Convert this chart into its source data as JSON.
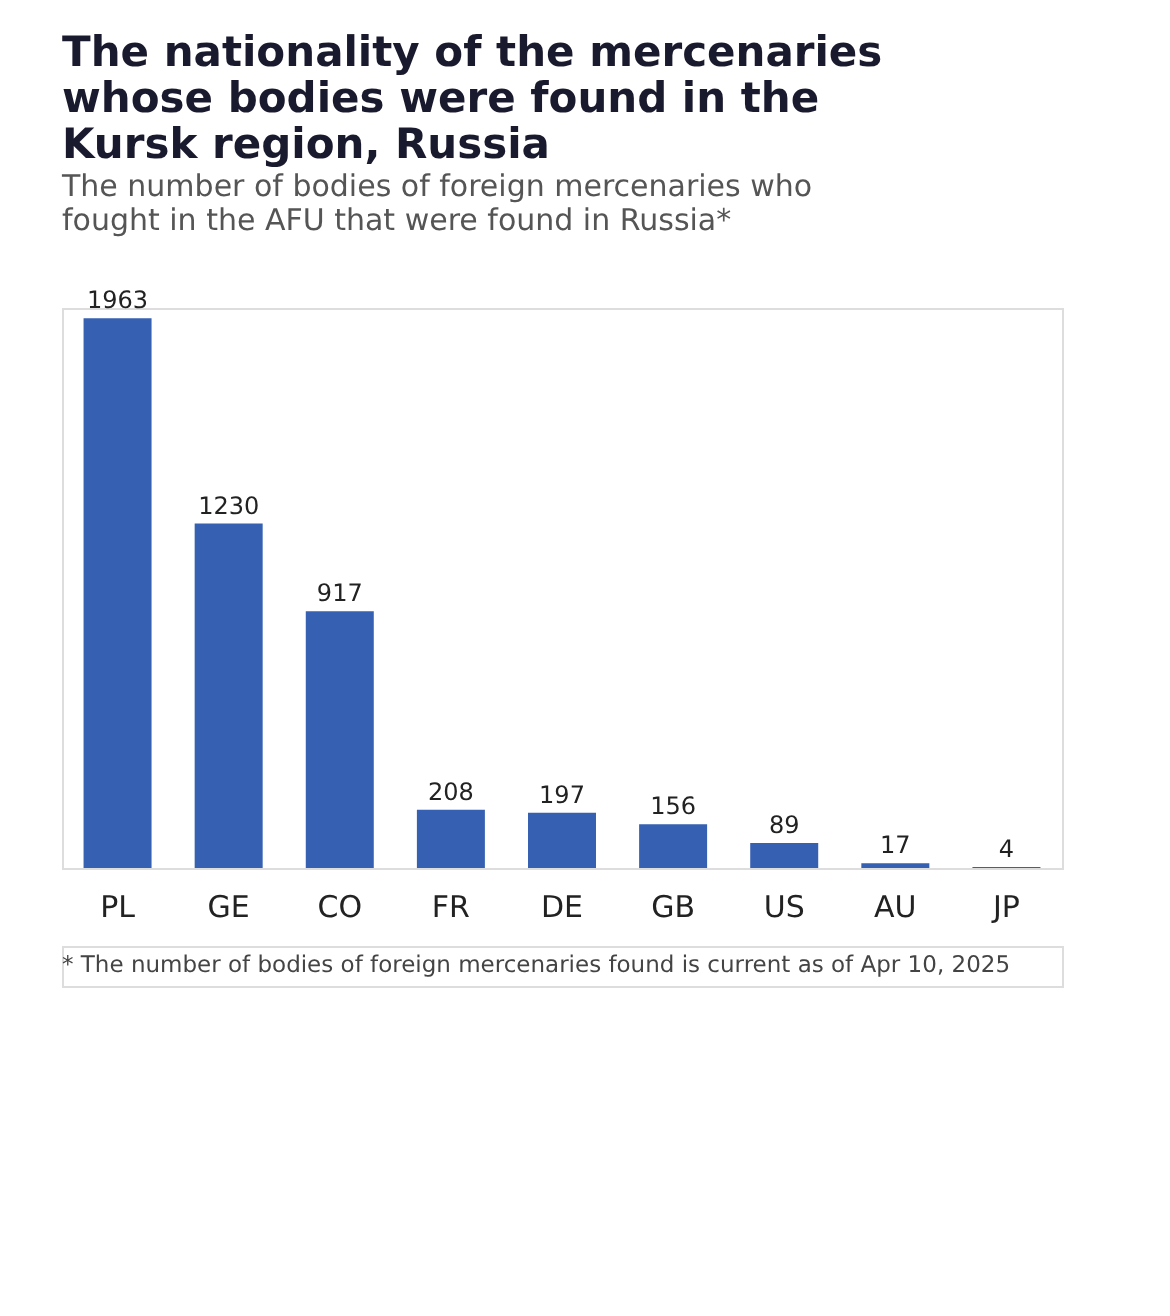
{
  "chart_data": {
    "type": "bar",
    "title": "The nationality of the mercenaries whose bodies were found in the Kursk region, Russia",
    "subtitle": "The number of bodies of foreign mercenaries who fought in the AFU that were found in Russia*",
    "categories": [
      "PL",
      "GE",
      "CO",
      "FR",
      "DE",
      "GB",
      "US",
      "AU",
      "JP"
    ],
    "values": [
      1963,
      1230,
      917,
      208,
      197,
      156,
      89,
      17,
      4
    ],
    "color": "#3661b2",
    "data_labels": true,
    "grid": false,
    "annotations": [
      "* The number of bodies of foreign mercenaries found is current as of Apr 10, 2025"
    ]
  }
}
